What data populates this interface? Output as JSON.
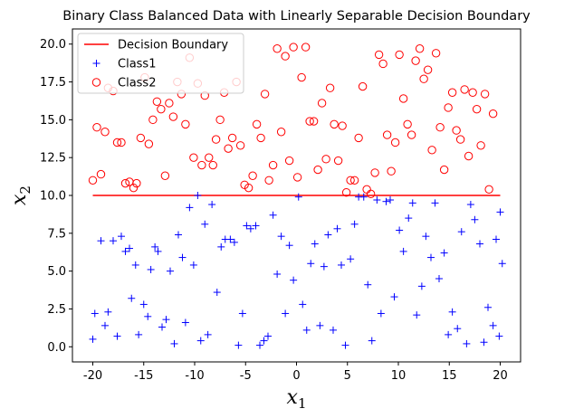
{
  "chart_data": {
    "type": "scatter",
    "title": "Binary Class Balanced Data with Linearly Separable Decision Boundary",
    "xlabel": "x",
    "xlabel_sub": "1",
    "ylabel": "x",
    "ylabel_sub": "2",
    "xlim": [
      -22,
      22
    ],
    "ylim": [
      -1,
      21
    ],
    "xticks": [
      -20,
      -15,
      -10,
      -5,
      0,
      5,
      10,
      15,
      20
    ],
    "yticks": [
      0.0,
      2.5,
      5.0,
      7.5,
      10.0,
      12.5,
      15.0,
      17.5,
      20.0
    ],
    "ytick_labels": [
      "0.0",
      "2.5",
      "5.0",
      "7.5",
      "10.0",
      "12.5",
      "15.0",
      "17.5",
      "20.0"
    ],
    "grid": false,
    "legend_position": "top-left",
    "decision_boundary": {
      "name": "Decision Boundary",
      "color": "#ff0000",
      "x": [
        -20,
        20
      ],
      "y": [
        10,
        10
      ]
    },
    "series": [
      {
        "name": "Class1",
        "marker": "plus",
        "color": "#0000ff",
        "points": [
          [
            -20,
            0.5
          ],
          [
            -19.8,
            2.2
          ],
          [
            -19.2,
            7.0
          ],
          [
            -18.8,
            1.4
          ],
          [
            -18.5,
            2.3
          ],
          [
            -18.0,
            7.0
          ],
          [
            -17.6,
            0.7
          ],
          [
            -17.2,
            7.3
          ],
          [
            -16.8,
            6.3
          ],
          [
            -16.4,
            6.5
          ],
          [
            -16.2,
            3.2
          ],
          [
            -15.8,
            5.4
          ],
          [
            -15.5,
            0.8
          ],
          [
            -15.0,
            2.8
          ],
          [
            -14.6,
            2.0
          ],
          [
            -14.3,
            5.1
          ],
          [
            -13.9,
            6.6
          ],
          [
            -13.6,
            6.3
          ],
          [
            -13.2,
            1.3
          ],
          [
            -12.8,
            1.8
          ],
          [
            -12.4,
            5.0
          ],
          [
            -12.0,
            0.2
          ],
          [
            -11.6,
            7.4
          ],
          [
            -11.2,
            5.9
          ],
          [
            -10.9,
            1.6
          ],
          [
            -10.5,
            9.2
          ],
          [
            -10.1,
            5.4
          ],
          [
            -9.7,
            10.0
          ],
          [
            -9.4,
            0.4
          ],
          [
            -9.0,
            8.1
          ],
          [
            -8.7,
            0.8
          ],
          [
            -8.3,
            9.4
          ],
          [
            -7.8,
            3.6
          ],
          [
            -7.4,
            6.6
          ],
          [
            -7.0,
            7.1
          ],
          [
            -6.5,
            7.1
          ],
          [
            -6.1,
            6.9
          ],
          [
            -5.7,
            0.1
          ],
          [
            -5.3,
            2.2
          ],
          [
            -4.9,
            8.0
          ],
          [
            -4.5,
            7.8
          ],
          [
            -4.0,
            8.0
          ],
          [
            -3.6,
            0.1
          ],
          [
            -3.2,
            0.4
          ],
          [
            -2.8,
            0.7
          ],
          [
            -2.3,
            8.7
          ],
          [
            -1.9,
            4.8
          ],
          [
            -1.5,
            7.3
          ],
          [
            -1.1,
            2.2
          ],
          [
            -0.7,
            6.7
          ],
          [
            -0.3,
            4.4
          ],
          [
            0.2,
            9.9
          ],
          [
            0.6,
            2.8
          ],
          [
            1.0,
            1.1
          ],
          [
            1.4,
            5.5
          ],
          [
            1.8,
            6.8
          ],
          [
            2.3,
            1.4
          ],
          [
            2.7,
            5.3
          ],
          [
            3.1,
            7.4
          ],
          [
            3.6,
            1.1
          ],
          [
            4.0,
            7.8
          ],
          [
            4.4,
            5.4
          ],
          [
            4.8,
            0.1
          ],
          [
            5.3,
            5.8
          ],
          [
            5.7,
            8.1
          ],
          [
            6.1,
            9.9
          ],
          [
            6.6,
            9.9
          ],
          [
            7.0,
            4.1
          ],
          [
            7.4,
            0.4
          ],
          [
            7.9,
            9.7
          ],
          [
            8.3,
            2.2
          ],
          [
            8.8,
            9.6
          ],
          [
            9.2,
            9.7
          ],
          [
            9.6,
            3.3
          ],
          [
            10.1,
            7.7
          ],
          [
            10.5,
            6.3
          ],
          [
            11.0,
            8.5
          ],
          [
            11.4,
            9.5
          ],
          [
            11.8,
            2.1
          ],
          [
            12.3,
            4.0
          ],
          [
            12.7,
            7.3
          ],
          [
            13.2,
            5.9
          ],
          [
            13.6,
            9.5
          ],
          [
            14.0,
            4.5
          ],
          [
            14.5,
            6.2
          ],
          [
            14.9,
            0.8
          ],
          [
            15.3,
            2.3
          ],
          [
            15.8,
            1.2
          ],
          [
            16.2,
            7.6
          ],
          [
            16.7,
            0.2
          ],
          [
            17.1,
            9.4
          ],
          [
            17.5,
            8.4
          ],
          [
            18.0,
            6.8
          ],
          [
            18.4,
            0.3
          ],
          [
            18.8,
            2.6
          ],
          [
            19.3,
            1.4
          ],
          [
            19.6,
            7.1
          ],
          [
            19.9,
            0.7
          ],
          [
            20.0,
            8.9
          ],
          [
            20.2,
            5.5
          ]
        ]
      },
      {
        "name": "Class2",
        "marker": "circle",
        "color": "#ff0000",
        "points": [
          [
            -20,
            11.0
          ],
          [
            -19.6,
            14.5
          ],
          [
            -19.2,
            11.4
          ],
          [
            -18.8,
            14.2
          ],
          [
            -18.5,
            17.1
          ],
          [
            -18.0,
            16.9
          ],
          [
            -17.6,
            13.5
          ],
          [
            -17.2,
            13.5
          ],
          [
            -16.8,
            10.8
          ],
          [
            -16.4,
            10.9
          ],
          [
            -16.0,
            10.5
          ],
          [
            -15.7,
            10.8
          ],
          [
            -15.3,
            13.8
          ],
          [
            -14.9,
            17.8
          ],
          [
            -14.5,
            13.4
          ],
          [
            -14.1,
            15.0
          ],
          [
            -13.7,
            16.2
          ],
          [
            -13.3,
            15.7
          ],
          [
            -12.9,
            11.3
          ],
          [
            -12.5,
            16.1
          ],
          [
            -12.1,
            15.2
          ],
          [
            -11.7,
            17.5
          ],
          [
            -11.3,
            16.7
          ],
          [
            -10.9,
            14.7
          ],
          [
            -10.5,
            19.1
          ],
          [
            -10.1,
            12.5
          ],
          [
            -9.7,
            17.4
          ],
          [
            -9.3,
            12.0
          ],
          [
            -9.0,
            16.6
          ],
          [
            -8.6,
            12.5
          ],
          [
            -8.2,
            12.0
          ],
          [
            -7.9,
            13.7
          ],
          [
            -7.5,
            15.0
          ],
          [
            -7.1,
            16.8
          ],
          [
            -6.7,
            13.1
          ],
          [
            -6.3,
            13.8
          ],
          [
            -5.9,
            17.5
          ],
          [
            -5.5,
            13.3
          ],
          [
            -5.1,
            10.7
          ],
          [
            -4.7,
            10.5
          ],
          [
            -4.3,
            11.3
          ],
          [
            -3.9,
            14.7
          ],
          [
            -3.5,
            13.8
          ],
          [
            -3.1,
            16.7
          ],
          [
            -2.7,
            11.0
          ],
          [
            -2.3,
            12.0
          ],
          [
            -1.9,
            19.7
          ],
          [
            -1.5,
            14.2
          ],
          [
            -1.1,
            19.2
          ],
          [
            -0.7,
            12.3
          ],
          [
            -0.3,
            19.8
          ],
          [
            0.1,
            11.2
          ],
          [
            0.5,
            17.8
          ],
          [
            0.9,
            19.8
          ],
          [
            1.3,
            14.9
          ],
          [
            1.7,
            14.9
          ],
          [
            2.1,
            11.7
          ],
          [
            2.5,
            16.1
          ],
          [
            2.9,
            12.4
          ],
          [
            3.3,
            17.1
          ],
          [
            3.7,
            14.7
          ],
          [
            4.1,
            12.3
          ],
          [
            4.5,
            14.6
          ],
          [
            4.9,
            10.2
          ],
          [
            5.3,
            11.0
          ],
          [
            5.7,
            11.0
          ],
          [
            6.1,
            13.8
          ],
          [
            6.5,
            17.2
          ],
          [
            6.9,
            10.4
          ],
          [
            7.3,
            10.1
          ],
          [
            7.7,
            11.5
          ],
          [
            8.1,
            19.3
          ],
          [
            8.5,
            18.7
          ],
          [
            8.9,
            14.0
          ],
          [
            9.3,
            11.6
          ],
          [
            9.7,
            13.5
          ],
          [
            10.1,
            19.3
          ],
          [
            10.5,
            16.4
          ],
          [
            10.9,
            14.7
          ],
          [
            11.3,
            14.0
          ],
          [
            11.7,
            18.9
          ],
          [
            12.1,
            19.7
          ],
          [
            12.5,
            17.7
          ],
          [
            12.9,
            18.3
          ],
          [
            13.3,
            13.0
          ],
          [
            13.7,
            19.4
          ],
          [
            14.1,
            14.5
          ],
          [
            14.5,
            11.7
          ],
          [
            14.9,
            15.8
          ],
          [
            15.3,
            16.8
          ],
          [
            15.7,
            14.3
          ],
          [
            16.1,
            13.7
          ],
          [
            16.5,
            17.0
          ],
          [
            16.9,
            12.6
          ],
          [
            17.3,
            16.8
          ],
          [
            17.7,
            15.7
          ],
          [
            18.1,
            13.3
          ],
          [
            18.5,
            16.7
          ],
          [
            18.9,
            10.4
          ],
          [
            19.3,
            15.4
          ]
        ]
      }
    ]
  }
}
